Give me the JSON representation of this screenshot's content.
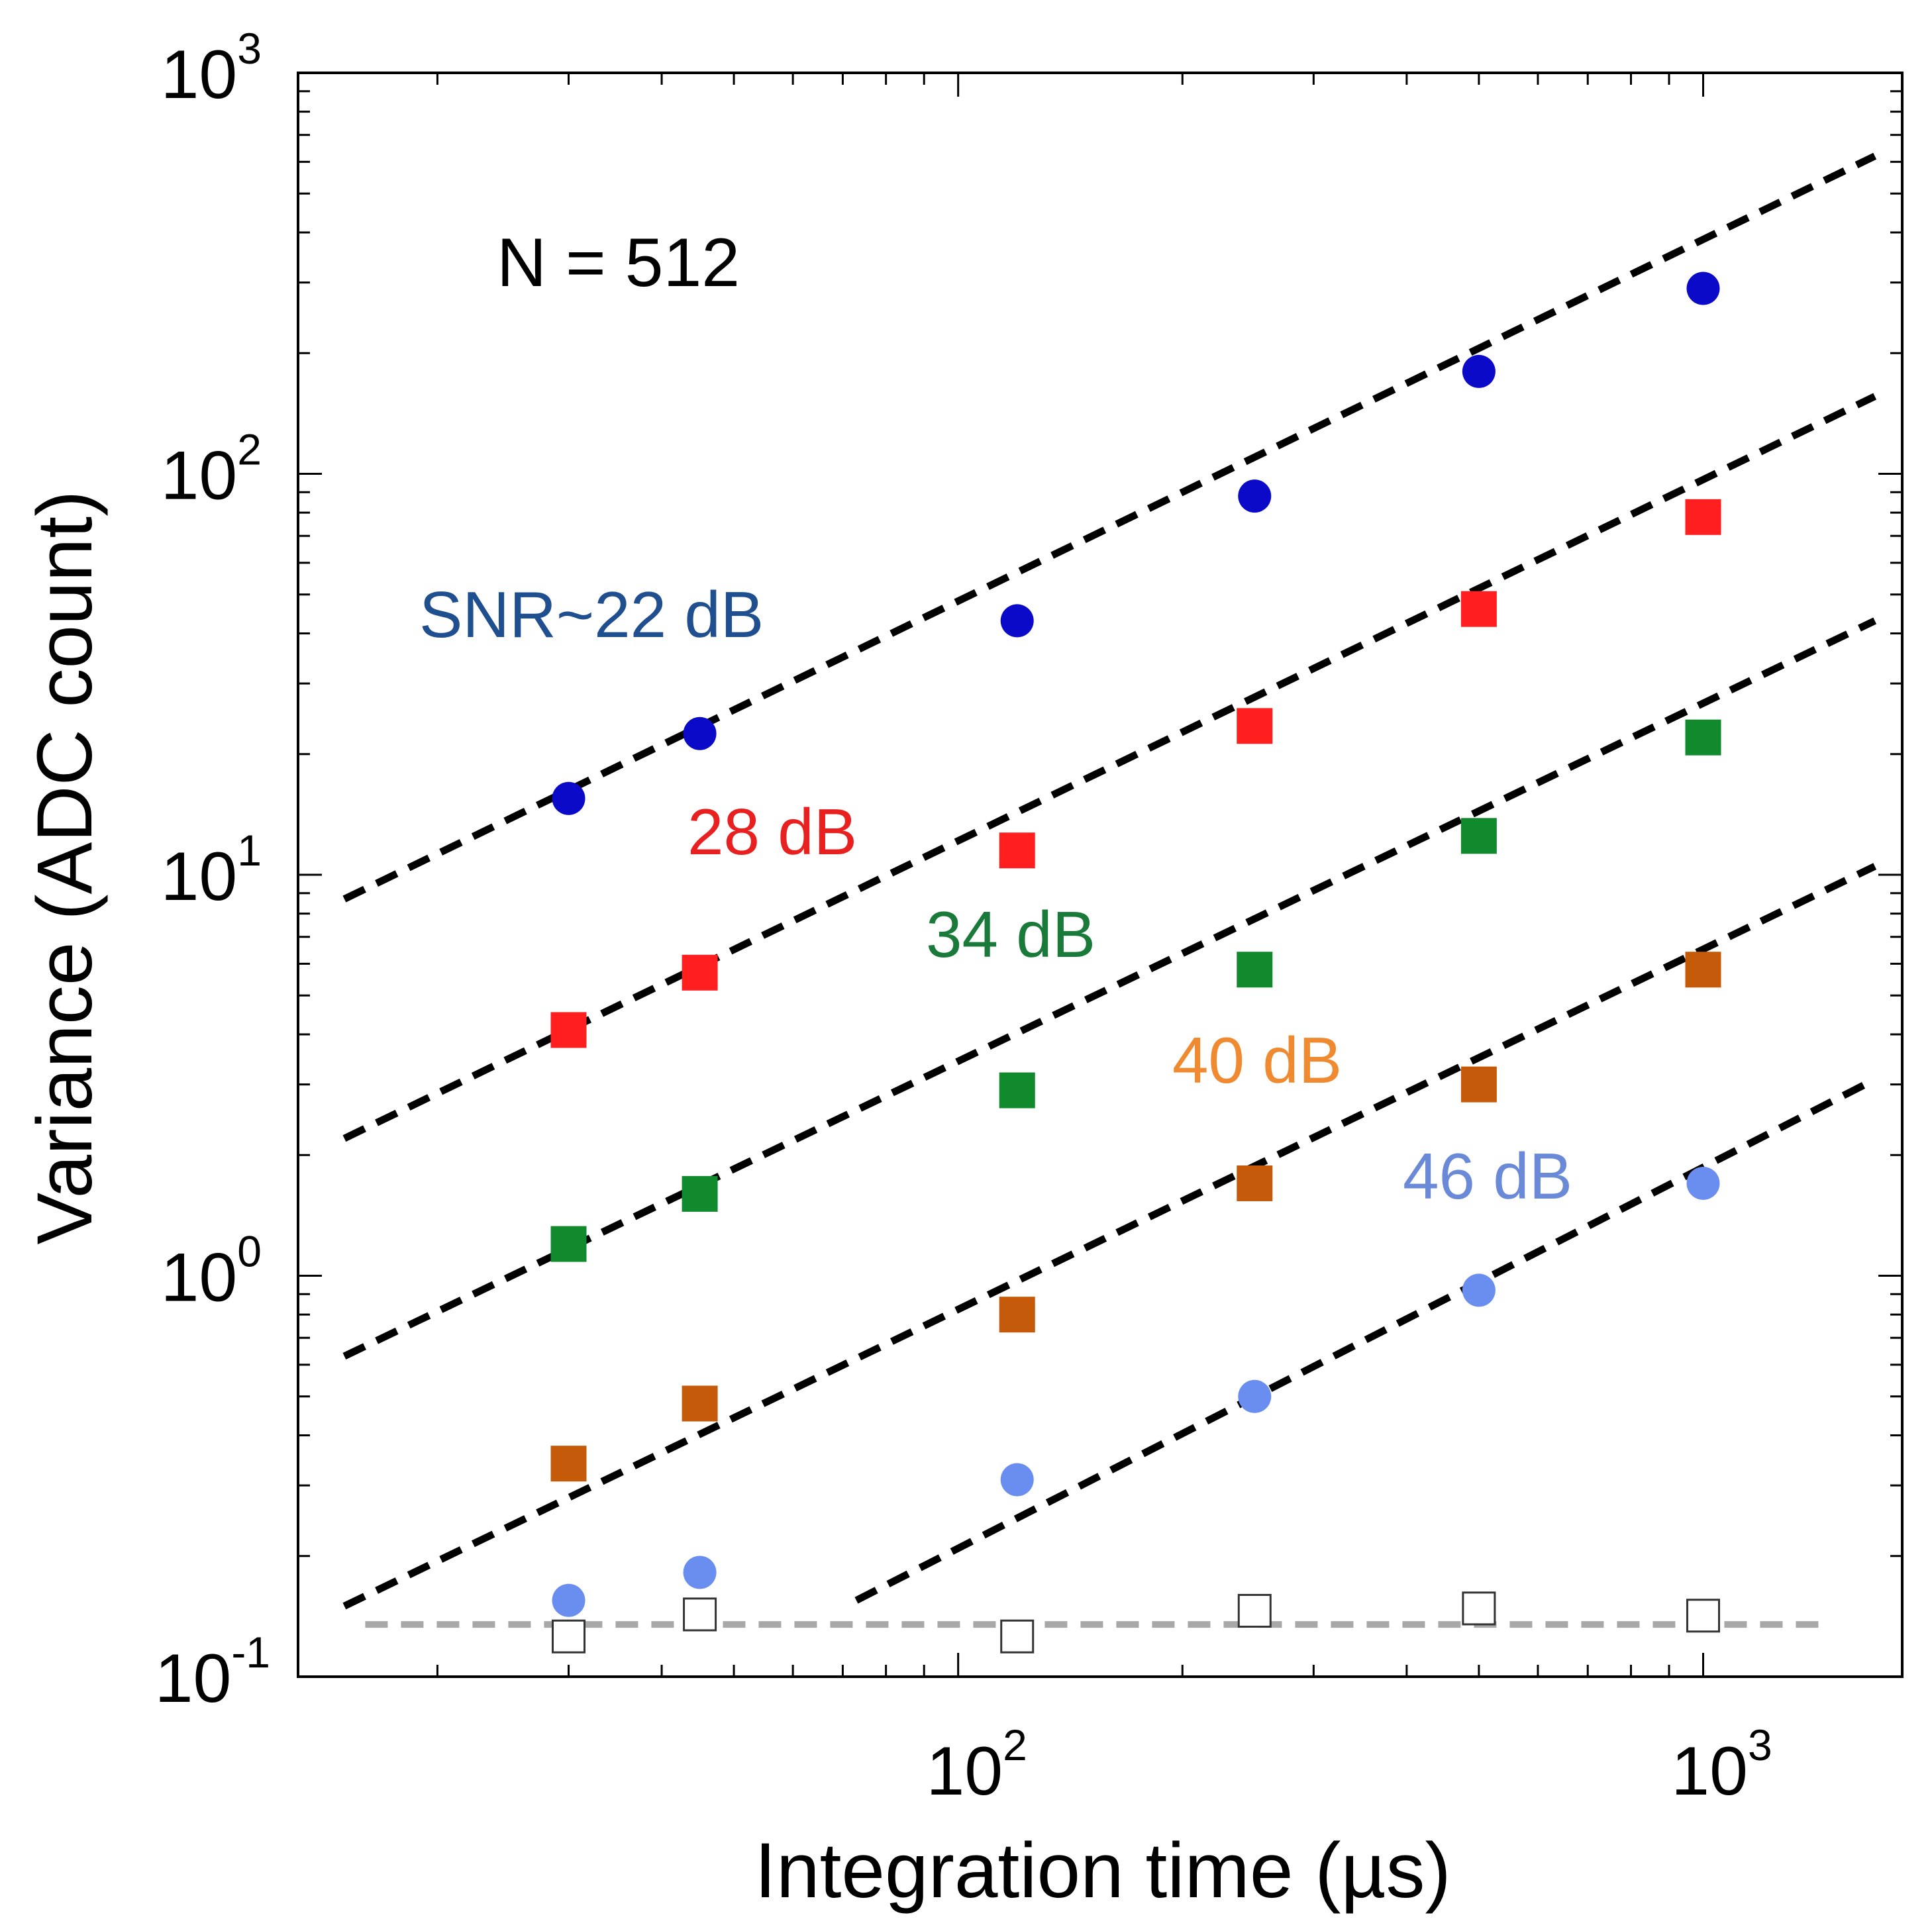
{
  "chart_data": {
    "type": "scatter",
    "xlabel": "Integration time (µs)",
    "ylabel": "Variance (ADC count)",
    "xscale": "log",
    "yscale": "log",
    "xlim": [
      13,
      1850
    ],
    "ylim": [
      0.1,
      1000
    ],
    "x_tick_labels": [
      {
        "value": 100,
        "base": "10",
        "exp": "2"
      },
      {
        "value": 1000,
        "base": "10",
        "exp": "3"
      }
    ],
    "y_tick_labels": [
      {
        "value": 0.1,
        "base": "10",
        "exp": "-1"
      },
      {
        "value": 1,
        "base": "10",
        "exp": "0"
      },
      {
        "value": 10,
        "base": "10",
        "exp": "1"
      },
      {
        "value": 100,
        "base": "10",
        "exp": "2"
      },
      {
        "value": 1000,
        "base": "10",
        "exp": "3"
      }
    ],
    "annotation": "N = 512",
    "x": [
      30,
      45,
      120,
      250,
      500,
      1000
    ],
    "series": [
      {
        "name": "SNR~22 dB",
        "marker": "circle",
        "color": "#0a0ac8",
        "label_color": "#1f4f8f",
        "values": [
          15.5,
          22.5,
          43,
          88,
          180,
          290
        ],
        "fit": {
          "x": [
            15,
            1700
          ],
          "y": [
            8.7,
            620
          ]
        }
      },
      {
        "name": "28 dB",
        "marker": "square",
        "color": "#ff1f1f",
        "label_color": "#e82020",
        "values": [
          4.1,
          5.7,
          11.5,
          23.5,
          46,
          78
        ],
        "fit": {
          "x": [
            15,
            1700
          ],
          "y": [
            2.2,
            156
          ]
        }
      },
      {
        "name": "34 dB",
        "marker": "square",
        "color": "#118a2e",
        "label_color": "#1a7a3a",
        "values": [
          1.2,
          1.6,
          2.9,
          5.8,
          12.5,
          22
        ],
        "fit": {
          "x": [
            15,
            1700
          ],
          "y": [
            0.63,
            43
          ]
        }
      },
      {
        "name": "40 dB",
        "marker": "square",
        "color": "#c45a0a",
        "label_color": "#f08a30",
        "values": [
          0.34,
          0.48,
          0.8,
          1.7,
          3.0,
          5.8
        ],
        "fit": {
          "x": [
            15,
            1700
          ],
          "y": [
            0.15,
            10.5
          ]
        }
      },
      {
        "name": "46 dB",
        "marker": "circle",
        "color": "#6a8ef0",
        "label_color": "#6a8ad8",
        "values": [
          0.155,
          0.182,
          0.31,
          0.5,
          0.92,
          1.7
        ],
        "fit": {
          "x": [
            73,
            1650
          ],
          "y": [
            0.155,
            3.0
          ]
        }
      },
      {
        "name": "",
        "marker": "open-square",
        "color": "#333333",
        "values": [
          0.126,
          0.143,
          0.126,
          0.146,
          0.148,
          0.142
        ]
      }
    ],
    "baseline": {
      "y": 0.135,
      "x": [
        16,
        1480
      ],
      "color": "#a8a8a8"
    },
    "legend": "none",
    "grid": false
  }
}
